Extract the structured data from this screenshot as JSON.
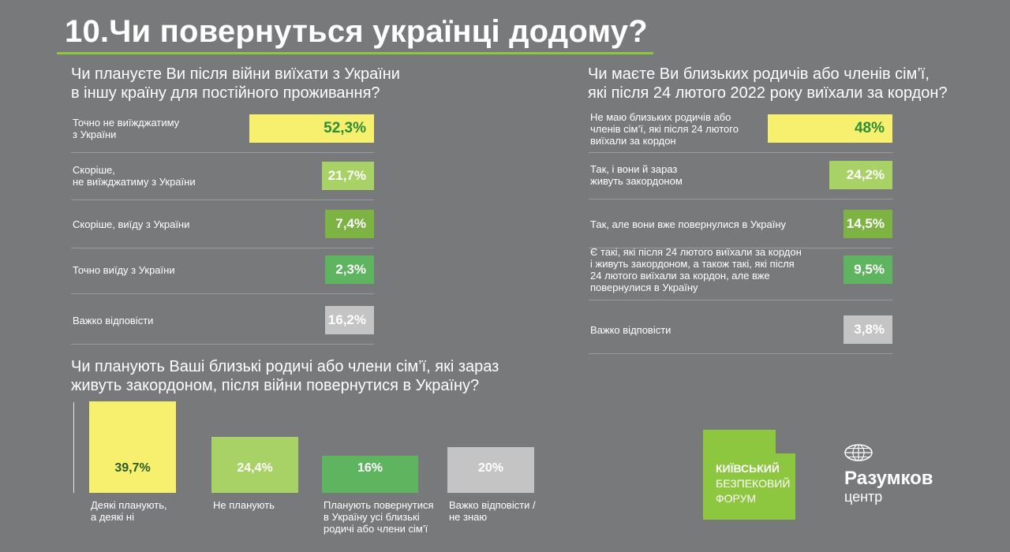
{
  "header": {
    "title": "10.Чи повернуться українці додому?"
  },
  "chart_data": [
    {
      "type": "bar",
      "orientation": "horizontal",
      "title_lines": [
        "Чи плануєте Ви після війни виїхати з України",
        "в іншу країну для постійного проживання?"
      ],
      "categories": [
        [
          "Точно не виїжджатиму",
          "з України"
        ],
        [
          "Скоріше,",
          "не виїжджатиму з України"
        ],
        [
          "Скоріше, виїду з України"
        ],
        [
          "Точно виїду з України"
        ],
        [
          "Важко відповісти"
        ]
      ],
      "values": [
        52.3,
        21.7,
        7.4,
        2.3,
        16.2
      ],
      "labels": [
        "52,3%",
        "21,7%",
        "7,4%",
        "2,3%",
        "16,2%"
      ],
      "colors": [
        "#f6f06e",
        "#a8d265",
        "#7cb342",
        "#5fb45f",
        "#c4c4c4"
      ],
      "xlim": [
        0,
        52.3
      ]
    },
    {
      "type": "bar",
      "orientation": "horizontal",
      "title_lines": [
        "Чи маєте Ви близьких родичів або членів сім’ї,",
        "які після 24 лютого 2022 року виїхали за кордон?"
      ],
      "categories": [
        [
          "Не маю близьких родичів або",
          "членів сім’ї, які після 24 лютого",
          "виїхали за кордон"
        ],
        [
          "Так, і вони й зараз",
          "живуть закордоном"
        ],
        [
          "Так, але вони вже повернулися в Україну"
        ],
        [
          "Є такі, які після 24 лютого виїхали за кордон",
          "і живуть закордоном, а також такі, які після",
          "24 лютого виїхали за кордон, але вже",
          "повернулися в Україну"
        ],
        [
          "Важко відповісти"
        ]
      ],
      "values": [
        48,
        24.2,
        14.5,
        9.5,
        3.8
      ],
      "labels": [
        "48%",
        "24,2%",
        "14,5%",
        "9,5%",
        "3,8%"
      ],
      "colors": [
        "#f6f06e",
        "#a8d265",
        "#7cb342",
        "#5fb45f",
        "#c4c4c4"
      ],
      "xlim": [
        0,
        48
      ]
    },
    {
      "type": "bar",
      "orientation": "vertical",
      "title_lines": [
        "Чи планують Ваші близькі родичі або члени сім’ї, які зараз",
        "живуть закордоном, після війни повернутися в Україну?"
      ],
      "categories": [
        [
          "Деякі планують,",
          "а деякі ні"
        ],
        [
          "Не планують"
        ],
        [
          "Планують повернутися",
          "в Україну усі близькі",
          "родичі або члени сім’ї"
        ],
        [
          "Важко відповісти /",
          "не знаю"
        ]
      ],
      "values": [
        39.7,
        24.4,
        16,
        20
      ],
      "labels": [
        "39,7%",
        "24,4%",
        "16%",
        "20%"
      ],
      "colors": [
        "#f6f06e",
        "#a8d265",
        "#5fb45f",
        "#c4c4c4"
      ],
      "ylim": [
        0,
        39.7
      ]
    }
  ],
  "logos": {
    "kbf": [
      "КИЇВСЬКИЙ",
      "БЕЗПЕКОВИЙ",
      "ФОРУМ"
    ],
    "kbf_color": "#8dc63f",
    "razumkov_name": "Разумков",
    "razumkov_sub": "центр",
    "razumkov_icon": "globe-icon"
  }
}
